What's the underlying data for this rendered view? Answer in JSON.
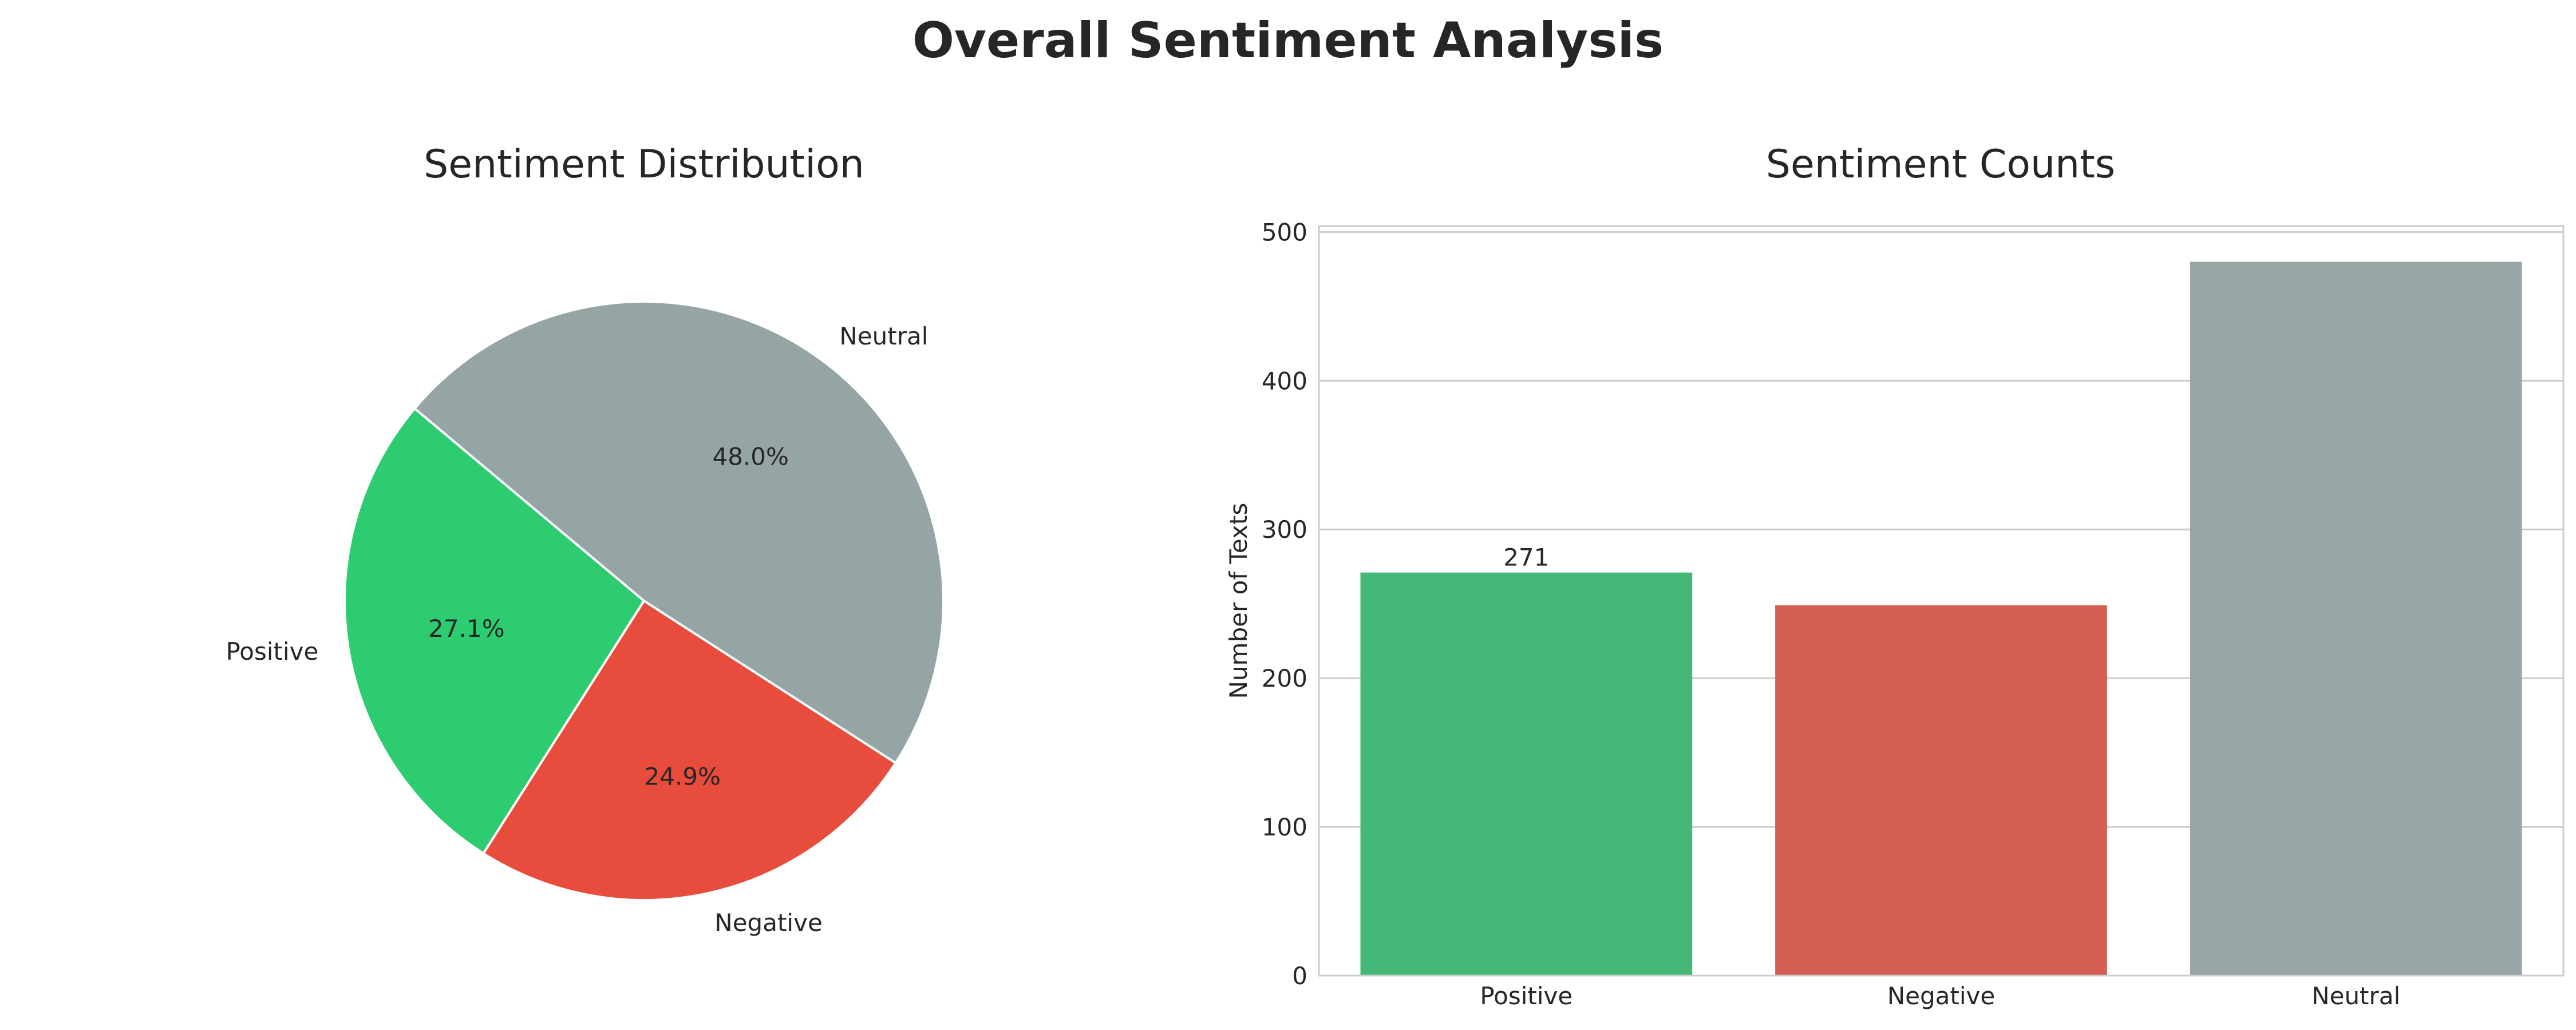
{
  "figure": {
    "title": "Overall Sentiment Analysis"
  },
  "chart_data": [
    {
      "type": "pie",
      "title": "Sentiment Distribution",
      "labels": [
        "Positive",
        "Negative",
        "Neutral"
      ],
      "values": [
        27.1,
        24.9,
        48.0
      ],
      "value_labels": [
        "27.1%",
        "24.9%",
        "48.0%"
      ],
      "colors": [
        "#2ecc71",
        "#e74c3c",
        "#95a5a6"
      ]
    },
    {
      "type": "bar",
      "title": "Sentiment Counts",
      "categories": [
        "Positive",
        "Negative",
        "Neutral"
      ],
      "values": [
        271,
        249,
        480
      ],
      "data_labels": [
        "271",
        "",
        ""
      ],
      "colors": [
        "#45b877",
        "#d45e52",
        "#99a5a6"
      ],
      "xlabel": "",
      "ylabel": "Number of Texts",
      "ylim": [
        0,
        504
      ],
      "yticks": [
        0,
        100,
        200,
        300,
        400,
        500
      ],
      "grid": true
    }
  ]
}
